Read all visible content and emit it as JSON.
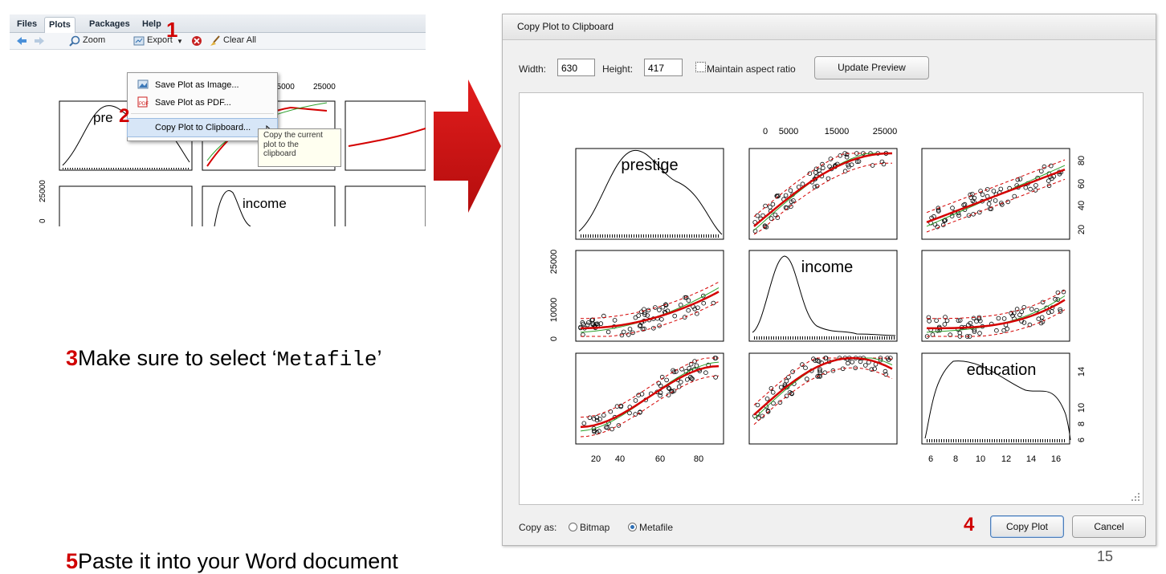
{
  "rstudio": {
    "tabs": [
      "Files",
      "Plots",
      "Packages",
      "Help"
    ],
    "toolbar": {
      "zoom": "Zoom",
      "export": "Export",
      "clear_all": "Clear All"
    },
    "export_menu": [
      "Save Plot as Image...",
      "Save Plot as PDF...",
      "Copy Plot to Clipboard..."
    ],
    "tooltip": [
      "Copy the current",
      "plot to the",
      "clipboard"
    ],
    "mini_plot": {
      "label_prestige": "pre",
      "label_income": "income",
      "tick_15000": "15000",
      "tick_25000": "25000",
      "tick_y_25000": "25000",
      "tick_y_0": "0"
    }
  },
  "steps": {
    "s1": "1",
    "s2": "2",
    "s3": "3",
    "s4": "4",
    "s5": "5"
  },
  "captions": {
    "step3_prefix": "Make sure to select ‘",
    "step3_code": "Metafile",
    "step3_suffix": "’",
    "step5": "Paste it into your Word document"
  },
  "dialog": {
    "title": "Copy Plot to Clipboard",
    "width_label": "Width:",
    "width_value": "630",
    "height_label": "Height:",
    "height_value": "417",
    "aspect_label": "Maintain aspect ratio",
    "update_button": "Update Preview",
    "copy_as_label": "Copy as:",
    "bitmap_label": "Bitmap",
    "metafile_label": "Metafile",
    "copy_button": "Copy Plot",
    "cancel_button": "Cancel"
  },
  "chart_data": {
    "type": "scatter",
    "variables": [
      "prestige",
      "income",
      "education"
    ],
    "top_axis_ticks": [
      "0",
      "5000",
      "15000",
      "25000"
    ],
    "bottom_axis_ticks": [
      "20",
      "40",
      "60",
      "80"
    ],
    "bottom_axis_ticks_right": [
      "6",
      "8",
      "10",
      "12",
      "14",
      "16"
    ],
    "right_axis_ticks_top": [
      "20",
      "40",
      "60",
      "80"
    ],
    "right_axis_ticks_bottom": [
      "6",
      "8",
      "10",
      "14"
    ],
    "left_axis_ticks_middle": [
      "0",
      "10000",
      "25000"
    ],
    "colors": {
      "smooth": "#d40000",
      "linear": "#2ca02c",
      "points": "#000000"
    }
  },
  "page_number": "15",
  "colors": {
    "accent_red": "#d00000",
    "arrow_red": "#d40f0f"
  }
}
